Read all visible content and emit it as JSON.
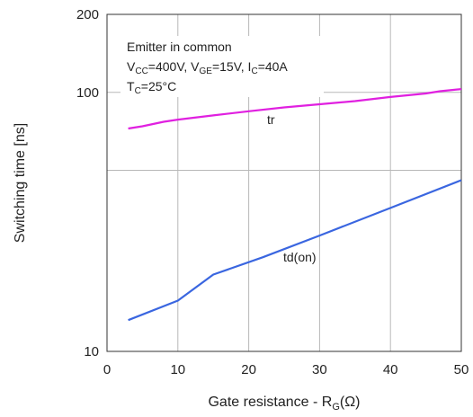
{
  "chart_data": {
    "type": "line",
    "xlabel": {
      "main": "Gate resistance - R",
      "sub": "G",
      "tail": "(Ω)"
    },
    "ylabel": "Switching time [ns]",
    "xlim": [
      0,
      50
    ],
    "ylim": [
      10,
      200
    ],
    "yscale": "log",
    "grid": true,
    "xticks": [
      "0",
      "10",
      "20",
      "30",
      "40",
      "50"
    ],
    "yticks": [
      "10",
      "100",
      "200"
    ],
    "conditions": {
      "line1": "Emitter in common",
      "line2": [
        {
          "text": "V"
        },
        {
          "text": "CC",
          "sub": true
        },
        {
          "text": "=400V, V"
        },
        {
          "text": "GE",
          "sub": true
        },
        {
          "text": "=15V, I"
        },
        {
          "text": "C",
          "sub": true
        },
        {
          "text": "=40A"
        }
      ],
      "line3": [
        {
          "text": "T"
        },
        {
          "text": "C",
          "sub": true
        },
        {
          "text": "=25°C"
        }
      ]
    },
    "series": [
      {
        "name": "tr",
        "color": "#e020e0",
        "x": [
          3,
          5,
          8,
          10,
          15,
          20,
          25,
          30,
          35,
          40,
          45,
          47,
          50
        ],
        "y": [
          72.5,
          74,
          77,
          78.5,
          81.5,
          84.5,
          87.5,
          90,
          92.5,
          96,
          99,
          101,
          103
        ]
      },
      {
        "name": "td(on)",
        "color": "#3a66e0",
        "x": [
          3,
          10,
          15,
          22,
          30,
          40,
          50
        ],
        "y": [
          13.2,
          15.7,
          19.8,
          23.1,
          28,
          35.8,
          45.8
        ]
      }
    ]
  }
}
